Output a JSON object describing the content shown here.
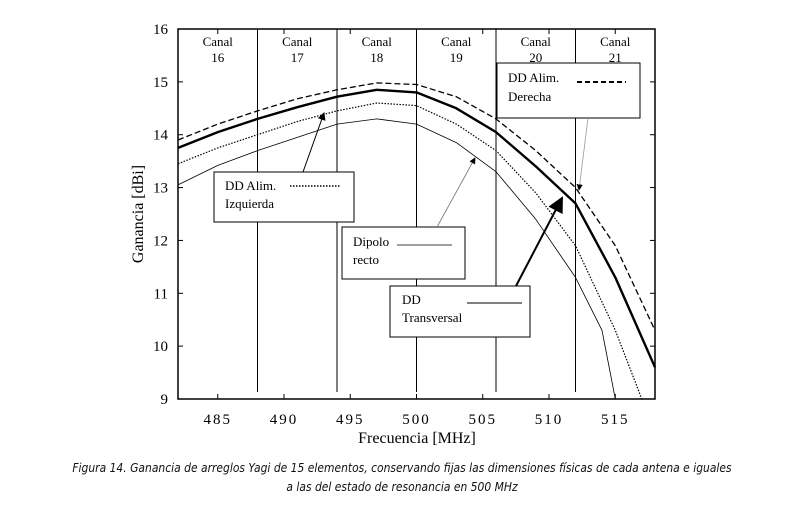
{
  "chart_data": {
    "type": "line",
    "xlabel": "Frecuencia [MHz]",
    "ylabel": "Ganancia [dBi]",
    "xlim": [
      482,
      518
    ],
    "ylim": [
      9,
      16
    ],
    "xticks": [
      "485",
      "490",
      "495",
      "500",
      "505",
      "510",
      "515"
    ],
    "yticks": [
      "9",
      "10",
      "11",
      "12",
      "13",
      "14",
      "15",
      "16"
    ],
    "grid": false,
    "channels": [
      {
        "label": "Canal",
        "num": "16",
        "from": 482,
        "to": 488
      },
      {
        "label": "Canal",
        "num": "17",
        "from": 488,
        "to": 494
      },
      {
        "label": "Canal",
        "num": "18",
        "from": 494,
        "to": 500
      },
      {
        "label": "Canal",
        "num": "19",
        "from": 500,
        "to": 506
      },
      {
        "label": "Canal",
        "num": "20",
        "from": 506,
        "to": 512
      },
      {
        "label": "Canal",
        "num": "21",
        "from": 512,
        "to": 518
      }
    ],
    "series": [
      {
        "name": "DD Alim. Derecha",
        "style": "dashed",
        "x": [
          482,
          485,
          488,
          491,
          494,
          497,
          500,
          503,
          506,
          509,
          512,
          515,
          518
        ],
        "y": [
          13.9,
          14.2,
          14.45,
          14.68,
          14.85,
          14.98,
          14.95,
          14.72,
          14.3,
          13.7,
          13.0,
          11.9,
          10.3
        ]
      },
      {
        "name": "DD Transversal",
        "style": "thick",
        "x": [
          482,
          485,
          488,
          491,
          494,
          497,
          500,
          503,
          506,
          509,
          512,
          515,
          518
        ],
        "y": [
          13.75,
          14.05,
          14.3,
          14.52,
          14.72,
          14.85,
          14.8,
          14.5,
          14.05,
          13.4,
          12.7,
          11.3,
          9.6
        ]
      },
      {
        "name": "DD Alim. Izquierda",
        "style": "dotted",
        "x": [
          482,
          485,
          488,
          491,
          494,
          497,
          500,
          503,
          506,
          509,
          512,
          515,
          517
        ],
        "y": [
          13.45,
          13.75,
          14.0,
          14.25,
          14.45,
          14.6,
          14.55,
          14.2,
          13.7,
          12.9,
          11.9,
          10.3,
          9.0
        ]
      },
      {
        "name": "Dipolo recto",
        "style": "thin",
        "x": [
          482,
          485,
          488,
          491,
          494,
          497,
          500,
          503,
          506,
          509,
          512,
          514,
          515
        ],
        "y": [
          13.05,
          13.42,
          13.7,
          13.95,
          14.2,
          14.3,
          14.2,
          13.85,
          13.3,
          12.4,
          11.3,
          10.3,
          9.0
        ]
      }
    ],
    "legend": {
      "izquierda": {
        "l1": "DD Alim.",
        "l2": "Izquierda"
      },
      "dipolo": {
        "l1": "Dipolo",
        "l2": "recto"
      },
      "transversal": {
        "l1": "DD",
        "l2": "Transversal"
      },
      "derecha": {
        "l1": "DD Alim.",
        "l2": "Derecha"
      }
    }
  },
  "caption": {
    "line1": "Figura 14. Ganancia de arreglos Yagi de 15 elementos, conservando fijas las dimensiones físicas de cada antena e iguales",
    "line2": "a las del estado de resonancia en 500 MHz"
  }
}
